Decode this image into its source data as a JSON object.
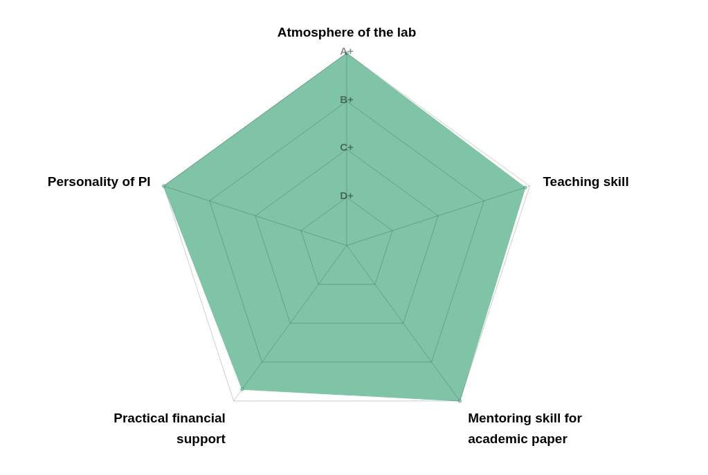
{
  "chart_data": {
    "type": "radar",
    "categories": [
      "Atmosphere of the lab",
      "Teaching skill",
      "Mentoring skill for academic paper",
      "Practical financial support",
      "Personality of PI"
    ],
    "series": [
      {
        "color": "#80c4a8",
        "values": [
          4,
          3.9,
          4,
          3.7,
          4
        ]
      }
    ],
    "ylim": [
      0,
      4
    ],
    "yticks": [
      {
        "value": 1,
        "label": "D+"
      },
      {
        "value": 2,
        "label": "C+"
      },
      {
        "value": 3,
        "label": "B+"
      },
      {
        "value": 4,
        "label": "A+"
      }
    ],
    "grid": true,
    "marker": "circle"
  }
}
